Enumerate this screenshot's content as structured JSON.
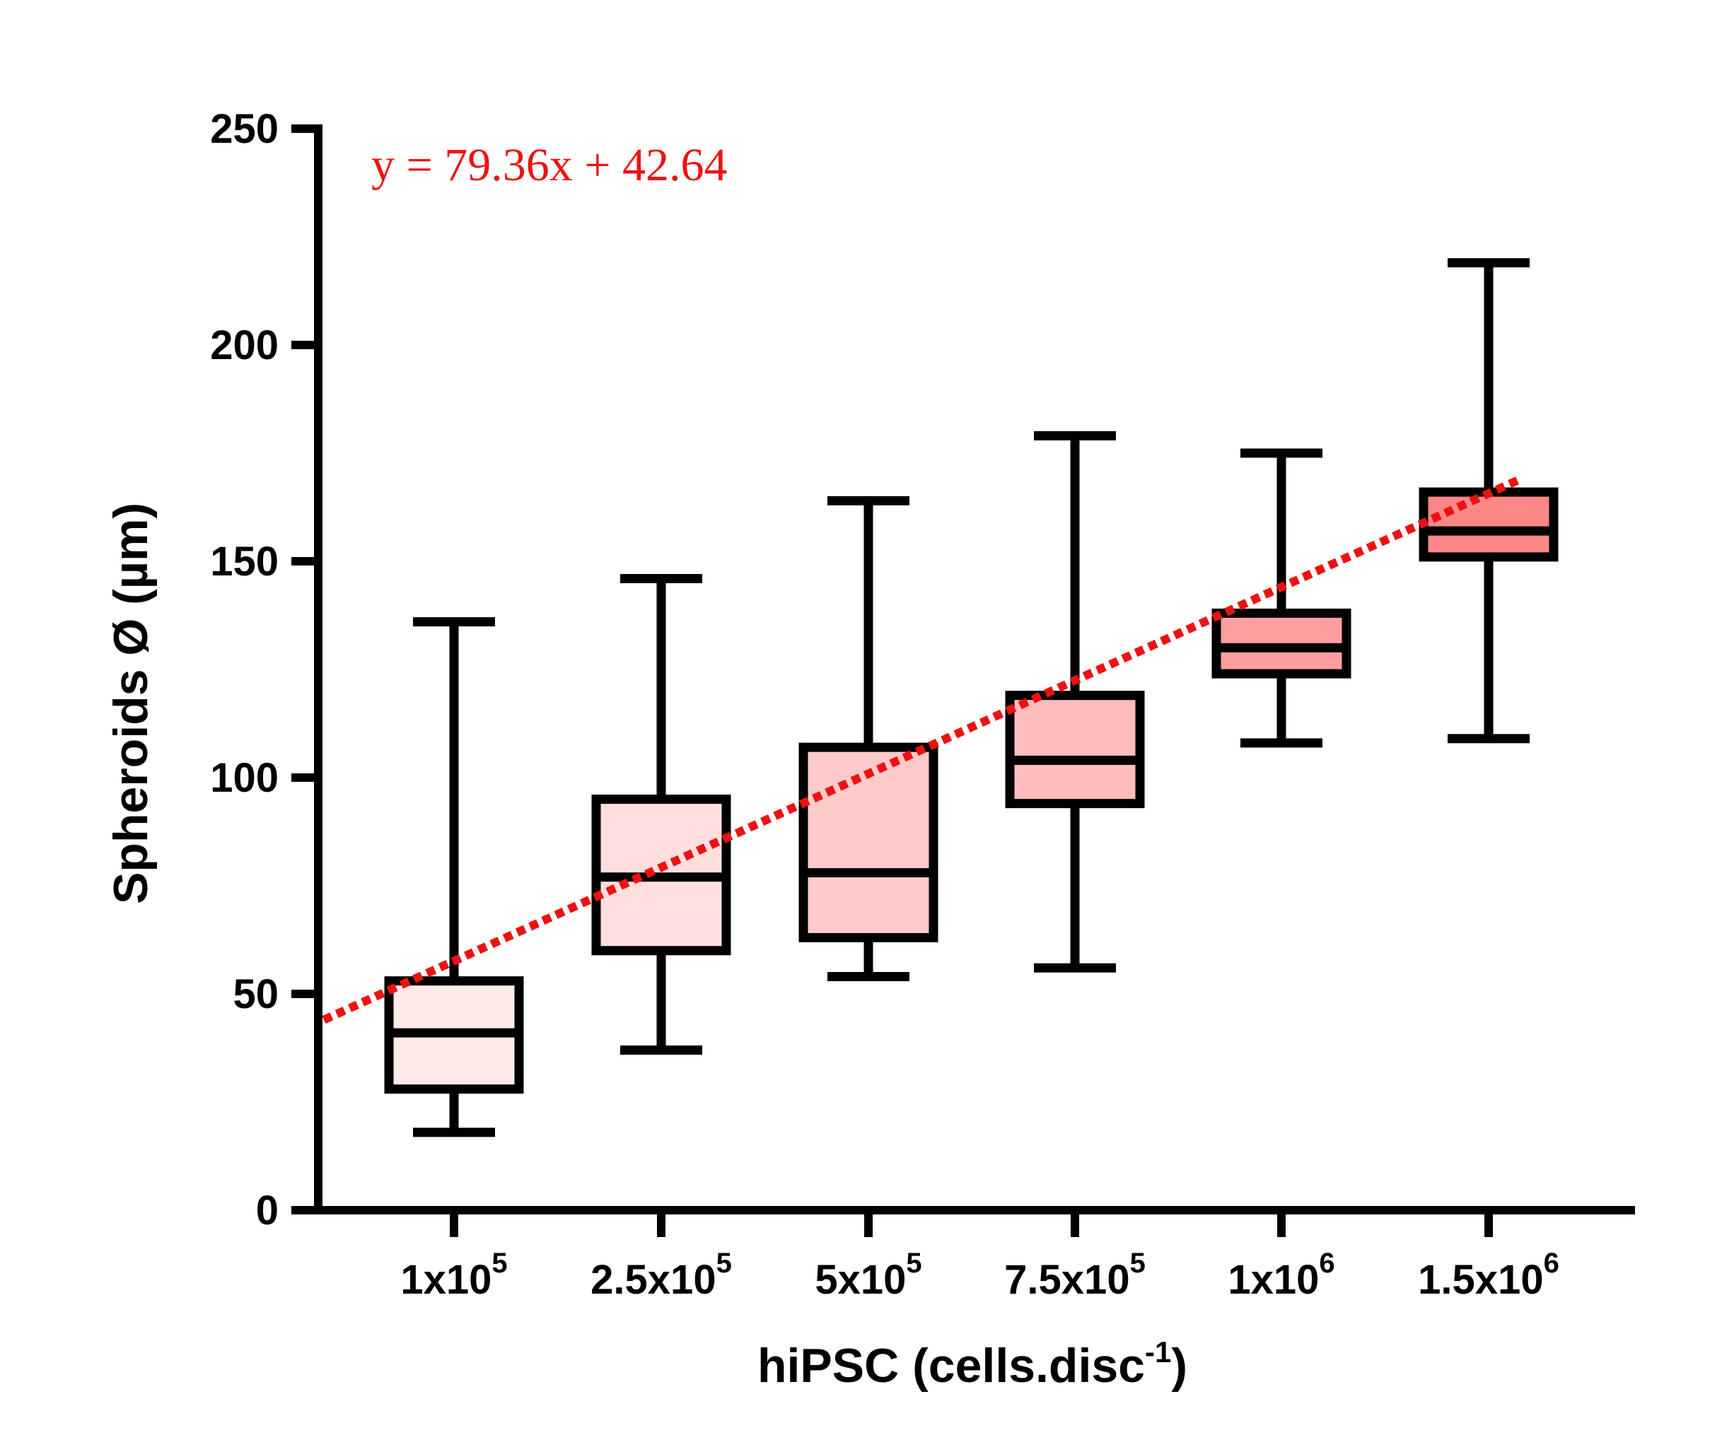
{
  "chart_data": {
    "type": "boxplot",
    "xlabel": {
      "base": "hiPSC (cells.disc",
      "sup": "-1",
      "tail": ")"
    },
    "ylabel": "Spheroids Ø (µm)",
    "ylim": [
      0,
      250
    ],
    "yticks": [
      "0",
      "50",
      "100",
      "150",
      "200",
      "250"
    ],
    "grid": false,
    "categories": [
      {
        "base": "1x10",
        "sup": "5"
      },
      {
        "base": "2.5x10",
        "sup": "5"
      },
      {
        "base": "5x10",
        "sup": "5"
      },
      {
        "base": "7.5x10",
        "sup": "5"
      },
      {
        "base": "1x10",
        "sup": "6"
      },
      {
        "base": "1.5x10",
        "sup": "6"
      }
    ],
    "series": [
      {
        "min": 18,
        "q1": 28,
        "median": 41,
        "q3": 53,
        "max": 136,
        "fill": "#ffeaea"
      },
      {
        "min": 37,
        "q1": 60,
        "median": 77,
        "q3": 95,
        "max": 146,
        "fill": "#ffdede"
      },
      {
        "min": 54,
        "q1": 63,
        "median": 78,
        "q3": 107,
        "max": 164,
        "fill": "#ffcaca"
      },
      {
        "min": 56,
        "q1": 94,
        "median": 104,
        "q3": 119,
        "max": 179,
        "fill": "#ffbcbc"
      },
      {
        "min": 108,
        "q1": 124,
        "median": 130,
        "q3": 138,
        "max": 175,
        "fill": "#ff9f9f"
      },
      {
        "min": 109,
        "q1": 151,
        "median": 157,
        "q3": 166,
        "max": 219,
        "fill": "#fc8787"
      }
    ],
    "trendline": {
      "equation": "y = 79.36x + 42.64",
      "color": "#ee1111",
      "start_value": 44,
      "end_value": 169
    }
  }
}
